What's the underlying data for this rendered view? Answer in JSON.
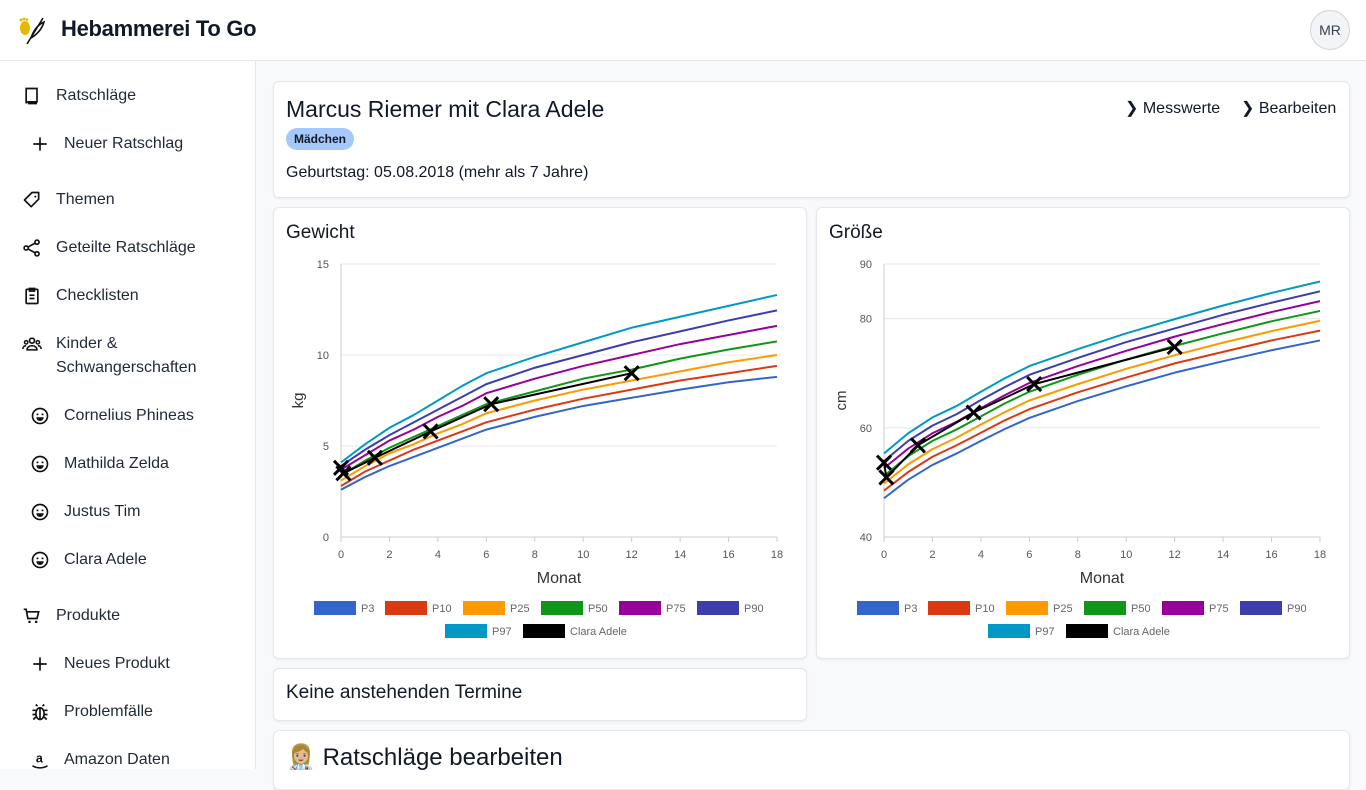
{
  "header": {
    "title": "Hebammerei To Go",
    "avatar_initials": "MR"
  },
  "sidebar": {
    "items": [
      {
        "label": "Ratschläge",
        "icon": "book-icon",
        "level": 1
      },
      {
        "label": "Neuer Ratschlag",
        "icon": "plus-icon",
        "level": 2
      },
      {
        "label": "Themen",
        "icon": "tag-icon",
        "level": 1
      },
      {
        "label": "Geteilte Ratschläge",
        "icon": "share-icon",
        "level": 1
      },
      {
        "label": "Checklisten",
        "icon": "clipboard-icon",
        "level": 1
      },
      {
        "label": "Kinder &",
        "label2": "Schwangerschaften",
        "icon": "users-icon",
        "level": 1
      },
      {
        "label": "Cornelius Phineas",
        "icon": "smiley-icon",
        "level": 2
      },
      {
        "label": "Mathilda Zelda",
        "icon": "smiley-icon",
        "level": 2
      },
      {
        "label": "Justus Tim",
        "icon": "smiley-icon",
        "level": 2
      },
      {
        "label": "Clara Adele",
        "icon": "smiley-icon",
        "level": 2
      },
      {
        "label": "Produkte",
        "icon": "cart-icon",
        "level": 1
      },
      {
        "label": "Neues Produkt",
        "icon": "plus-icon",
        "level": 2
      },
      {
        "label": "Problemfälle",
        "icon": "bug-icon",
        "level": 2
      },
      {
        "label": "Amazon Daten",
        "icon": "amazon-icon",
        "level": 2
      }
    ]
  },
  "profile": {
    "name": "Marcus Riemer mit Clara Adele",
    "badge": "Mädchen",
    "birthday": "Geburtstag: 05.08.2018 (mehr als 7 Jahre)",
    "links": [
      "❯ Messwerte",
      "❯ Bearbeiten"
    ]
  },
  "appointments": {
    "text": "Keine anstehenden Termine"
  },
  "advice": {
    "emoji": "👩🏼‍⚕️",
    "title": "Ratschläge bearbeiten"
  },
  "colors": {
    "P3": "#3366cc",
    "P10": "#dc3912",
    "P25": "#ff9900",
    "P50": "#109618",
    "P75": "#990099",
    "P90": "#3b3eac",
    "P97": "#0099c6",
    "Clara Adele": "#000000",
    "badge": "#a3c8f9"
  },
  "chart_data": [
    {
      "type": "line",
      "title": "Gewicht",
      "xlabel": "Monat",
      "ylabel": "kg",
      "xlim": [
        0,
        18
      ],
      "ylim": [
        0,
        15
      ],
      "xticks": [
        "0",
        "2",
        "4",
        "6",
        "8",
        "10",
        "12",
        "14",
        "16",
        "18"
      ],
      "yticks": [
        "0",
        "5",
        "10",
        "15"
      ],
      "grid": true,
      "legend": "bottom",
      "x": [
        0,
        1,
        2,
        3,
        4,
        5,
        6,
        8,
        10,
        12,
        14,
        16,
        18
      ],
      "series": [
        {
          "name": "P3",
          "values": [
            2.6,
            3.3,
            3.9,
            4.4,
            4.9,
            5.4,
            5.9,
            6.6,
            7.2,
            7.65,
            8.1,
            8.5,
            8.8
          ]
        },
        {
          "name": "P10",
          "values": [
            2.8,
            3.6,
            4.2,
            4.8,
            5.3,
            5.8,
            6.3,
            7.0,
            7.6,
            8.1,
            8.6,
            9.0,
            9.4
          ]
        },
        {
          "name": "P25",
          "values": [
            3.1,
            3.9,
            4.6,
            5.1,
            5.7,
            6.2,
            6.8,
            7.5,
            8.1,
            8.6,
            9.1,
            9.6,
            10.0
          ]
        },
        {
          "name": "P50",
          "values": [
            3.4,
            4.2,
            4.9,
            5.5,
            6.1,
            6.7,
            7.3,
            8.0,
            8.7,
            9.2,
            9.8,
            10.3,
            10.75
          ]
        },
        {
          "name": "P75",
          "values": [
            3.7,
            4.5,
            5.3,
            5.9,
            6.6,
            7.2,
            7.9,
            8.7,
            9.4,
            10.0,
            10.6,
            11.1,
            11.6
          ]
        },
        {
          "name": "P90",
          "values": [
            3.9,
            4.8,
            5.6,
            6.3,
            7.0,
            7.7,
            8.4,
            9.3,
            10.0,
            10.7,
            11.3,
            11.9,
            12.45
          ]
        },
        {
          "name": "P97",
          "values": [
            4.1,
            5.1,
            6.0,
            6.7,
            7.5,
            8.3,
            9.0,
            9.9,
            10.7,
            11.5,
            12.1,
            12.7,
            13.3
          ]
        },
        {
          "name": "Clara Adele",
          "points": [
            [
              0,
              3.8
            ],
            [
              0.1,
              3.5
            ],
            [
              1.4,
              4.35
            ],
            [
              3.7,
              5.8
            ],
            [
              6.2,
              7.3
            ],
            [
              12.0,
              9.0
            ]
          ]
        }
      ]
    },
    {
      "type": "line",
      "title": "Größe",
      "xlabel": "Monat",
      "ylabel": "cm",
      "xlim": [
        0,
        18
      ],
      "ylim": [
        40,
        90
      ],
      "xticks": [
        "0",
        "2",
        "4",
        "6",
        "8",
        "10",
        "12",
        "14",
        "16",
        "18"
      ],
      "yticks": [
        "40",
        "60",
        "80",
        "90"
      ],
      "grid": true,
      "legend": "bottom",
      "x": [
        0,
        1,
        2,
        3,
        4,
        5,
        6,
        8,
        10,
        12,
        14,
        16,
        18
      ],
      "series": [
        {
          "name": "P3",
          "values": [
            47.1,
            50.5,
            53.2,
            55.3,
            57.6,
            59.8,
            61.8,
            64.9,
            67.6,
            70.1,
            72.2,
            74.2,
            76.0
          ]
        },
        {
          "name": "P10",
          "values": [
            48.5,
            51.9,
            54.7,
            56.8,
            59.1,
            61.4,
            63.4,
            66.5,
            69.2,
            71.8,
            73.9,
            76.0,
            77.8
          ]
        },
        {
          "name": "P25",
          "values": [
            49.8,
            53.3,
            56.1,
            58.2,
            60.6,
            62.9,
            65.0,
            68.0,
            70.8,
            73.3,
            75.6,
            77.7,
            79.6
          ]
        },
        {
          "name": "P50",
          "values": [
            51.2,
            54.8,
            57.6,
            59.7,
            62.1,
            64.5,
            66.6,
            69.7,
            72.5,
            75.0,
            77.3,
            79.5,
            81.4
          ]
        },
        {
          "name": "P75",
          "values": [
            52.6,
            56.2,
            59.0,
            61.1,
            63.6,
            66.0,
            68.2,
            71.3,
            74.1,
            76.7,
            79.0,
            81.2,
            83.2
          ]
        },
        {
          "name": "P90",
          "values": [
            53.9,
            57.6,
            60.4,
            62.5,
            65.1,
            67.5,
            69.7,
            72.8,
            75.7,
            78.2,
            80.7,
            82.9,
            85.0
          ]
        },
        {
          "name": "P97",
          "values": [
            55.3,
            59.0,
            61.9,
            64.0,
            66.6,
            69.1,
            71.3,
            74.4,
            77.3,
            79.9,
            82.4,
            84.7,
            86.8
          ]
        },
        {
          "name": "Clara Adele",
          "points": [
            [
              0,
              53.6
            ],
            [
              0.1,
              50.9
            ],
            [
              1.4,
              56.8
            ],
            [
              3.7,
              62.8
            ],
            [
              6.2,
              68.0
            ],
            [
              12.0,
              74.8
            ]
          ]
        }
      ]
    }
  ]
}
